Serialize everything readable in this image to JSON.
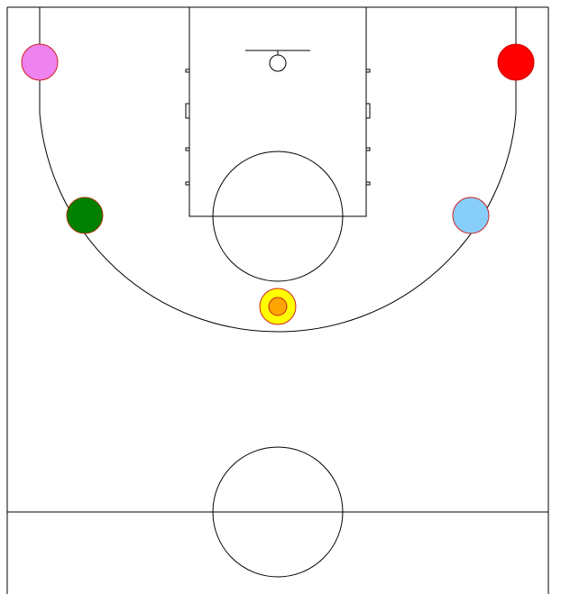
{
  "court": {
    "line_color": "#000000",
    "background": "#ffffff"
  },
  "players": [
    {
      "id": "pink",
      "fill": "#ee82ee",
      "stroke": "#cc2222"
    },
    {
      "id": "red",
      "fill": "#ff0000",
      "stroke": "#cc0000"
    },
    {
      "id": "green",
      "fill": "#008000",
      "stroke": "#aa3300"
    },
    {
      "id": "lightblue",
      "fill": "#87cefa",
      "stroke": "#cc2222"
    },
    {
      "id": "yellow",
      "fill": "#ffff00",
      "stroke": "#cc2222"
    }
  ],
  "ball": {
    "fill": "#ffa500",
    "stroke": "#cc2222"
  }
}
